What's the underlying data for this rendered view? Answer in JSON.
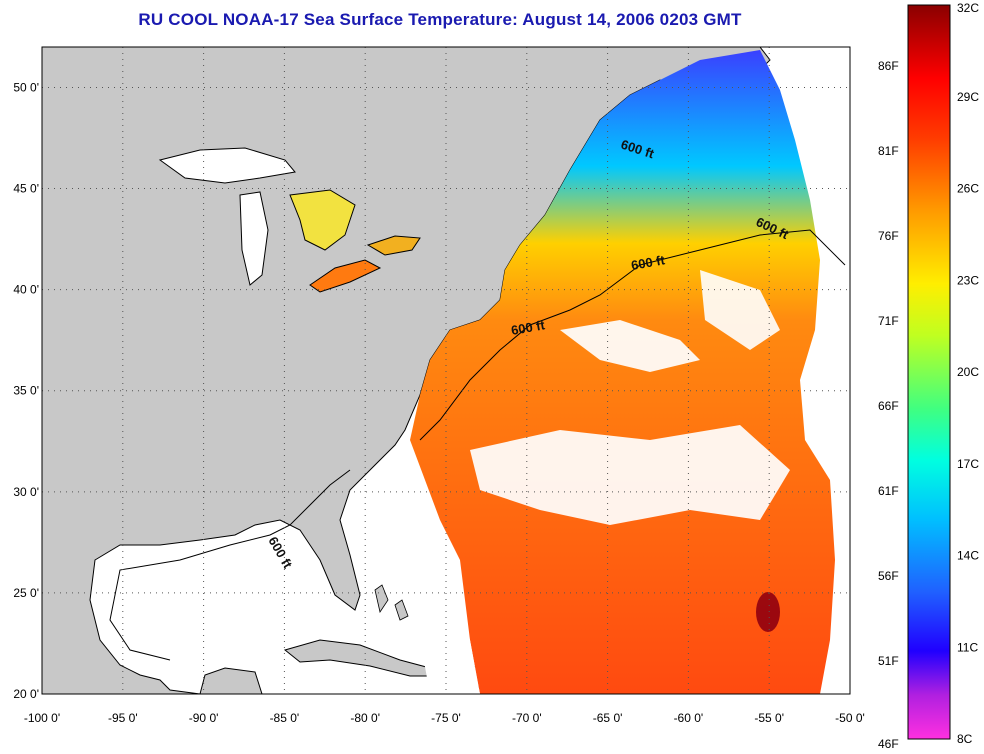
{
  "title": "RU COOL  NOAA-17  Sea Surface Temperature:  August 14, 2006 0203 GMT",
  "map": {
    "lon_range": [
      -100,
      -50
    ],
    "lat_range": [
      20,
      52
    ],
    "lon_ticks": [
      "-100 0'",
      "-95 0'",
      "-90 0'",
      "-85 0'",
      "-80 0'",
      "-75 0'",
      "-70 0'",
      "-65 0'",
      "-60 0'",
      "-55 0'",
      "-50 0'"
    ],
    "lat_ticks": [
      "20 0'",
      "25 0'",
      "30 0'",
      "35 0'",
      "40 0'",
      "45 0'",
      "50 0'"
    ],
    "contour_labels": [
      "600 ft",
      "600 ft",
      "600 ft",
      "600 ft",
      "600 ft"
    ],
    "colors": {
      "land": "#c8c8c8",
      "ocean_no_data": "#ffffff"
    }
  },
  "colorbar": {
    "fahrenheit_labels": [
      "86F",
      "81F",
      "76F",
      "71F",
      "66F",
      "61F",
      "56F",
      "51F",
      "46F"
    ],
    "celsius_labels": [
      "32C",
      "29C",
      "26C",
      "23C",
      "20C",
      "17C",
      "14C",
      "11C",
      "8C"
    ],
    "range_c": [
      8,
      32
    ],
    "range_f": [
      46,
      89.6
    ]
  }
}
